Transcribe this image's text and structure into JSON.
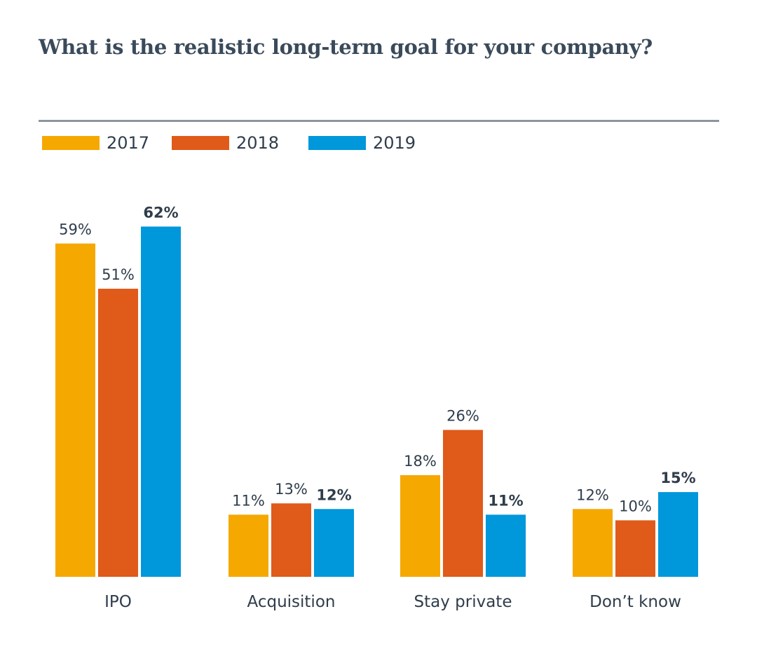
{
  "page": {
    "title": "What is the realistic long-term goal for your company?"
  },
  "chart_data": {
    "type": "bar",
    "title": "What is the realistic long-term goal for your company?",
    "categories": [
      "IPO",
      "Acquisition",
      "Stay private",
      "Don’t know"
    ],
    "series": [
      {
        "name": "2017",
        "color": "#f5a800",
        "values": [
          59,
          11,
          18,
          12
        ],
        "labels": [
          "59%",
          "11%",
          "18%",
          "12%"
        ]
      },
      {
        "name": "2018",
        "color": "#e05a1a",
        "values": [
          51,
          13,
          26,
          10
        ],
        "labels": [
          "51%",
          "13%",
          "26%",
          "10%"
        ]
      },
      {
        "name": "2019",
        "color": "#0097db",
        "values": [
          62,
          12,
          11,
          15
        ],
        "labels": [
          "62%",
          "12%",
          "11%",
          "15%"
        ],
        "highlight": true
      }
    ],
    "ylim": [
      0,
      62
    ],
    "unit": "%",
    "grid": false,
    "legend": "top-left"
  }
}
